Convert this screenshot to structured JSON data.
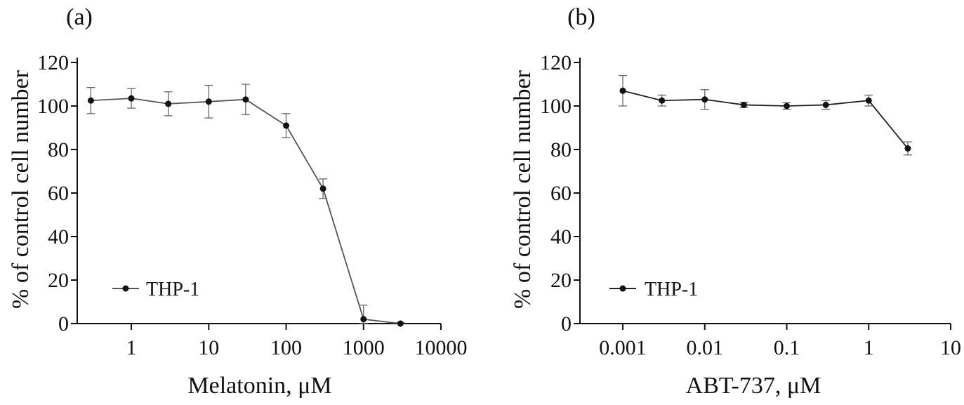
{
  "chart_data": [
    {
      "type": "line",
      "panel_label": "(a)",
      "xlabel": "Melatonin, μM",
      "ylabel": "% of control cell number",
      "x_scale": "log",
      "xlim": [
        0.2,
        10000
      ],
      "ylim": [
        0,
        120
      ],
      "x_ticks": [
        1,
        10,
        100,
        1000,
        10000
      ],
      "x_tick_labels": [
        "1",
        "10",
        "100",
        "1000",
        "10000"
      ],
      "y_ticks": [
        0,
        20,
        40,
        60,
        80,
        100,
        120
      ],
      "y_tick_labels": [
        "0",
        "20",
        "40",
        "60",
        "80",
        "100",
        "120"
      ],
      "grid": false,
      "legend_position": "lower-left",
      "series": [
        {
          "name": "THP-1",
          "color": "#555555",
          "marker_color": "#111111",
          "x": [
            0.3,
            1,
            3,
            10,
            30,
            100,
            300,
            1000,
            3000
          ],
          "y": [
            102.5,
            103.5,
            101,
            102,
            103,
            91,
            62,
            2,
            0
          ],
          "err": [
            6,
            4.5,
            5.5,
            7.5,
            7,
            5.5,
            4.5,
            6.5,
            0.5
          ]
        }
      ]
    },
    {
      "type": "line",
      "panel_label": "(b)",
      "xlabel": "ABT-737, μM",
      "ylabel": "% of control cell number",
      "x_scale": "log",
      "xlim": [
        0.0003,
        10
      ],
      "ylim": [
        0,
        120
      ],
      "x_ticks": [
        0.001,
        0.01,
        0.1,
        1,
        10
      ],
      "x_tick_labels": [
        "0.001",
        "0.01",
        "0.1",
        "1",
        "10"
      ],
      "y_ticks": [
        0,
        20,
        40,
        60,
        80,
        100,
        120
      ],
      "y_tick_labels": [
        "0",
        "20",
        "40",
        "60",
        "80",
        "100",
        "120"
      ],
      "grid": false,
      "legend_position": "lower-left",
      "series": [
        {
          "name": "THP-1",
          "color": "#222222",
          "marker_color": "#111111",
          "x": [
            0.001,
            0.003,
            0.01,
            0.03,
            0.1,
            0.3,
            1,
            3
          ],
          "y": [
            107,
            102.5,
            103,
            100.5,
            100,
            100.5,
            102.5,
            80.5
          ],
          "err": [
            7,
            2.5,
            4.5,
            1.2,
            1.5,
            2,
            2.5,
            3
          ]
        }
      ]
    }
  ]
}
